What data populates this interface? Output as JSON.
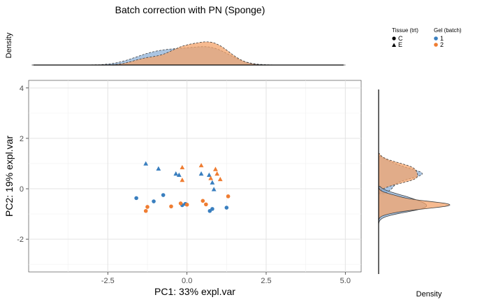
{
  "chart_data": {
    "type": "scatter",
    "title": "Batch correction with PN (Sponge)",
    "xlabel": "PC1: 33% expl.var",
    "ylabel": "PC2: 19% expl.var",
    "xlim": [
      -5.0,
      5.5
    ],
    "ylim": [
      -3.3,
      4.3
    ],
    "x_ticks": [
      -2.5,
      0.0,
      2.5,
      5.0
    ],
    "x_tick_labels": [
      "-2.5",
      "0.0",
      "2.5",
      "5.0"
    ],
    "y_ticks": [
      -2,
      0,
      2,
      4
    ],
    "y_tick_labels": [
      "-2",
      "0",
      "2",
      "4"
    ],
    "grid": true,
    "top_density_label": "Density",
    "right_density_label": "Density",
    "colors": {
      "batch_1": "#3a7fbf",
      "batch_2": "#ef7d32"
    },
    "legend": {
      "placement": "top-right",
      "shape_title": "Tissue (trt)",
      "shape_items": [
        {
          "label": "C",
          "shape": "circle"
        },
        {
          "label": "E",
          "shape": "triangle"
        }
      ],
      "color_title": "Gel (batch)",
      "color_items": [
        {
          "label": "1",
          "color": "#3a7fbf"
        },
        {
          "label": "2",
          "color": "#ef7d32"
        }
      ]
    },
    "series": [
      {
        "tissue": "C",
        "batch": "1",
        "points": [
          [
            -1.6,
            -0.37
          ],
          [
            -1.05,
            -0.5
          ],
          [
            -0.75,
            -0.25
          ],
          [
            -0.15,
            -0.65
          ],
          [
            -0.05,
            -0.6
          ],
          [
            0.72,
            -0.88
          ],
          [
            0.8,
            -0.8
          ],
          [
            1.25,
            -0.75
          ]
        ]
      },
      {
        "tissue": "C",
        "batch": "2",
        "points": [
          [
            -1.3,
            -0.88
          ],
          [
            -1.25,
            -0.72
          ],
          [
            -0.5,
            -0.7
          ],
          [
            -0.2,
            -0.58
          ],
          [
            0.0,
            -0.63
          ],
          [
            0.5,
            -0.48
          ],
          [
            0.6,
            -0.62
          ],
          [
            1.3,
            -0.3
          ]
        ]
      },
      {
        "tissue": "E",
        "batch": "1",
        "points": [
          [
            -1.3,
            1.0
          ],
          [
            -0.9,
            0.8
          ],
          [
            -0.35,
            0.6
          ],
          [
            -0.25,
            0.55
          ],
          [
            0.45,
            0.6
          ],
          [
            0.7,
            0.55
          ],
          [
            0.8,
            0.25
          ],
          [
            0.85,
            -0.02
          ]
        ]
      },
      {
        "tissue": "E",
        "batch": "2",
        "points": [
          [
            -0.15,
            0.85
          ],
          [
            -0.15,
            0.35
          ],
          [
            0.45,
            0.93
          ],
          [
            0.75,
            0.42
          ],
          [
            0.9,
            0.78
          ],
          [
            0.95,
            0.6
          ],
          [
            1.05,
            0.38
          ]
        ]
      }
    ]
  }
}
